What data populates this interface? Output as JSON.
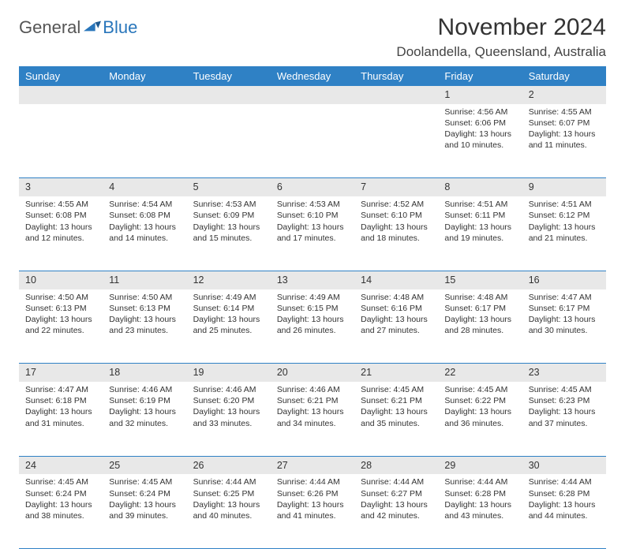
{
  "logo": {
    "text1": "General",
    "text2": "Blue",
    "mark_color": "#2976bb"
  },
  "title": "November 2024",
  "location": "Doolandella, Queensland, Australia",
  "styling": {
    "header_bg": "#2f81c5",
    "header_fg": "#ffffff",
    "daynum_bg": "#e8e8e8",
    "row_border": "#2f81c5",
    "body_text": "#333333",
    "page_bg": "#ffffff",
    "title_fontsize": 30,
    "location_fontsize": 17,
    "dayheader_fontsize": 13,
    "cell_fontsize": 10.5
  },
  "day_headers": [
    "Sunday",
    "Monday",
    "Tuesday",
    "Wednesday",
    "Thursday",
    "Friday",
    "Saturday"
  ],
  "weeks": [
    [
      null,
      null,
      null,
      null,
      null,
      {
        "n": "1",
        "sr": "4:56 AM",
        "ss": "6:06 PM",
        "dl": "13 hours and 10 minutes."
      },
      {
        "n": "2",
        "sr": "4:55 AM",
        "ss": "6:07 PM",
        "dl": "13 hours and 11 minutes."
      }
    ],
    [
      {
        "n": "3",
        "sr": "4:55 AM",
        "ss": "6:08 PM",
        "dl": "13 hours and 12 minutes."
      },
      {
        "n": "4",
        "sr": "4:54 AM",
        "ss": "6:08 PM",
        "dl": "13 hours and 14 minutes."
      },
      {
        "n": "5",
        "sr": "4:53 AM",
        "ss": "6:09 PM",
        "dl": "13 hours and 15 minutes."
      },
      {
        "n": "6",
        "sr": "4:53 AM",
        "ss": "6:10 PM",
        "dl": "13 hours and 17 minutes."
      },
      {
        "n": "7",
        "sr": "4:52 AM",
        "ss": "6:10 PM",
        "dl": "13 hours and 18 minutes."
      },
      {
        "n": "8",
        "sr": "4:51 AM",
        "ss": "6:11 PM",
        "dl": "13 hours and 19 minutes."
      },
      {
        "n": "9",
        "sr": "4:51 AM",
        "ss": "6:12 PM",
        "dl": "13 hours and 21 minutes."
      }
    ],
    [
      {
        "n": "10",
        "sr": "4:50 AM",
        "ss": "6:13 PM",
        "dl": "13 hours and 22 minutes."
      },
      {
        "n": "11",
        "sr": "4:50 AM",
        "ss": "6:13 PM",
        "dl": "13 hours and 23 minutes."
      },
      {
        "n": "12",
        "sr": "4:49 AM",
        "ss": "6:14 PM",
        "dl": "13 hours and 25 minutes."
      },
      {
        "n": "13",
        "sr": "4:49 AM",
        "ss": "6:15 PM",
        "dl": "13 hours and 26 minutes."
      },
      {
        "n": "14",
        "sr": "4:48 AM",
        "ss": "6:16 PM",
        "dl": "13 hours and 27 minutes."
      },
      {
        "n": "15",
        "sr": "4:48 AM",
        "ss": "6:17 PM",
        "dl": "13 hours and 28 minutes."
      },
      {
        "n": "16",
        "sr": "4:47 AM",
        "ss": "6:17 PM",
        "dl": "13 hours and 30 minutes."
      }
    ],
    [
      {
        "n": "17",
        "sr": "4:47 AM",
        "ss": "6:18 PM",
        "dl": "13 hours and 31 minutes."
      },
      {
        "n": "18",
        "sr": "4:46 AM",
        "ss": "6:19 PM",
        "dl": "13 hours and 32 minutes."
      },
      {
        "n": "19",
        "sr": "4:46 AM",
        "ss": "6:20 PM",
        "dl": "13 hours and 33 minutes."
      },
      {
        "n": "20",
        "sr": "4:46 AM",
        "ss": "6:21 PM",
        "dl": "13 hours and 34 minutes."
      },
      {
        "n": "21",
        "sr": "4:45 AM",
        "ss": "6:21 PM",
        "dl": "13 hours and 35 minutes."
      },
      {
        "n": "22",
        "sr": "4:45 AM",
        "ss": "6:22 PM",
        "dl": "13 hours and 36 minutes."
      },
      {
        "n": "23",
        "sr": "4:45 AM",
        "ss": "6:23 PM",
        "dl": "13 hours and 37 minutes."
      }
    ],
    [
      {
        "n": "24",
        "sr": "4:45 AM",
        "ss": "6:24 PM",
        "dl": "13 hours and 38 minutes."
      },
      {
        "n": "25",
        "sr": "4:45 AM",
        "ss": "6:24 PM",
        "dl": "13 hours and 39 minutes."
      },
      {
        "n": "26",
        "sr": "4:44 AM",
        "ss": "6:25 PM",
        "dl": "13 hours and 40 minutes."
      },
      {
        "n": "27",
        "sr": "4:44 AM",
        "ss": "6:26 PM",
        "dl": "13 hours and 41 minutes."
      },
      {
        "n": "28",
        "sr": "4:44 AM",
        "ss": "6:27 PM",
        "dl": "13 hours and 42 minutes."
      },
      {
        "n": "29",
        "sr": "4:44 AM",
        "ss": "6:28 PM",
        "dl": "13 hours and 43 minutes."
      },
      {
        "n": "30",
        "sr": "4:44 AM",
        "ss": "6:28 PM",
        "dl": "13 hours and 44 minutes."
      }
    ]
  ],
  "labels": {
    "sunrise": "Sunrise:",
    "sunset": "Sunset:",
    "daylight": "Daylight:"
  }
}
